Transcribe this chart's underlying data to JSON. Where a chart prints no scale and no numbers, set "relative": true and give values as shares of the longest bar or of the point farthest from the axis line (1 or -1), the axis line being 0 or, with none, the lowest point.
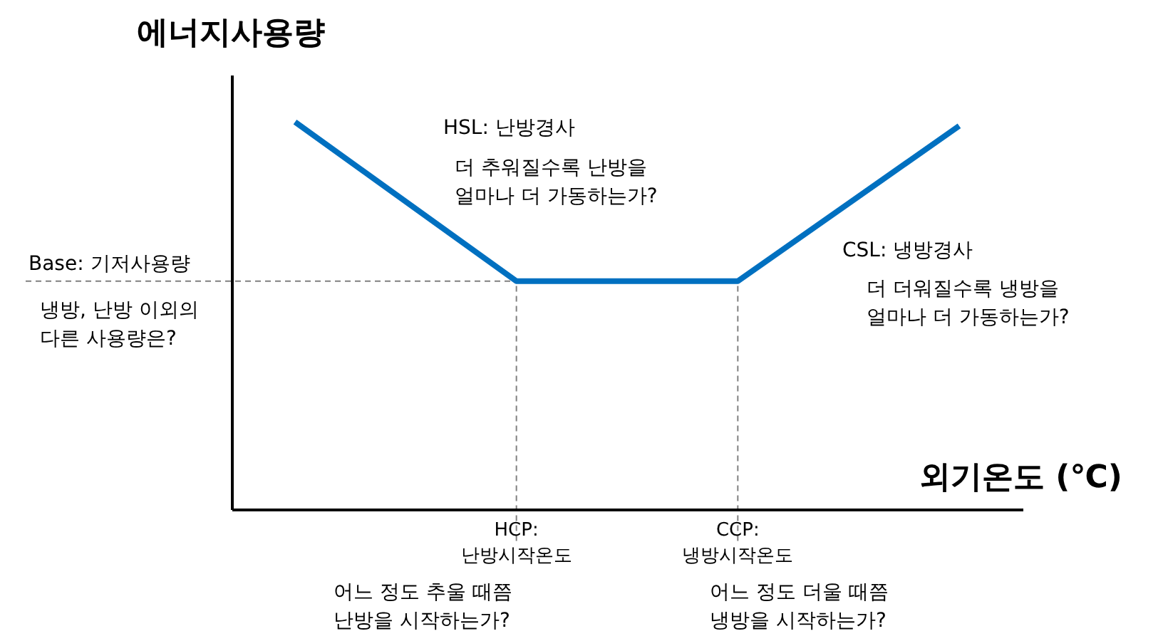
{
  "chart_data": {
    "type": "line",
    "relative": true,
    "ylabel": "에너지사용량",
    "xlabel": "외기온도 (℃)",
    "categories": [
      null,
      "HCP: 난방시작온도",
      "CCP: 냉방시작온도",
      null
    ],
    "series": [
      {
        "color": "#0070c0",
        "values": [
          1,
          0.59,
          0.59,
          0.99
        ]
      }
    ],
    "ref_lines": [
      {
        "axis": "y",
        "value": 0.59,
        "label": "Base: 기저사용량",
        "line_style": "dashed",
        "color": "#808080"
      },
      {
        "axis": "x",
        "value": "HCP: 난방시작온도",
        "line_style": "dashed",
        "color": "#808080"
      },
      {
        "axis": "x",
        "value": "CCP: 냉방시작온도",
        "line_style": "dashed",
        "color": "#808080"
      }
    ],
    "annotations": [
      "HSL: 난방경사",
      "더 추워질수록 난방을\n얼마나 더 가동하는가?",
      "CSL: 냉방경사",
      "더 더워질수록 냉방을\n얼마나 더 가동하는가?",
      "냉방, 난방 이외의\n다른 사용량은?",
      "어느 정도 추울 때쯤\n난방을 시작하는가?",
      "어느 정도 더울 때쯤\n냉방을 시작하는가?"
    ],
    "grid": false,
    "legend": false,
    "marker": "none",
    "line_style": "solid"
  }
}
